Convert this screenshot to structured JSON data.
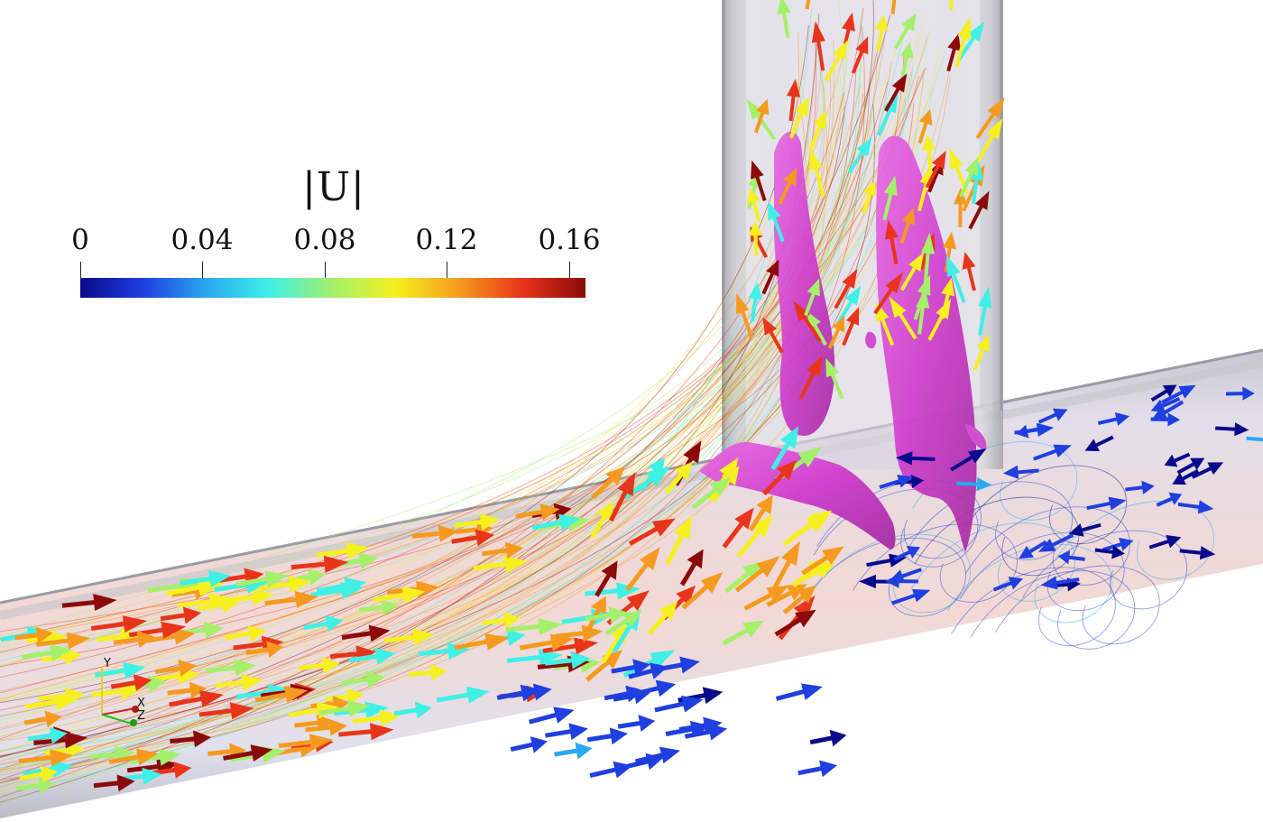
{
  "colorbar": {
    "title": "|U|",
    "ticks": [
      "0",
      "0.04",
      "0.08",
      "0.12",
      "0.16"
    ],
    "tick_values": [
      0,
      0.04,
      0.08,
      0.12,
      0.16
    ],
    "range": [
      0,
      0.165
    ],
    "colormap": [
      "#0a0a8c",
      "#1f3fe0",
      "#2aa8f0",
      "#3ff0e6",
      "#a4f06a",
      "#f5f01e",
      "#f59a1e",
      "#e8341a",
      "#8c0a0a"
    ]
  },
  "axes_triad": {
    "y_label": "Y",
    "x_label": "X",
    "z_label": "Z"
  },
  "colors": {
    "vortex_isosurface": "#d946d6",
    "pipe_wall": "#c8c8cc",
    "background": "#ffffff"
  }
}
